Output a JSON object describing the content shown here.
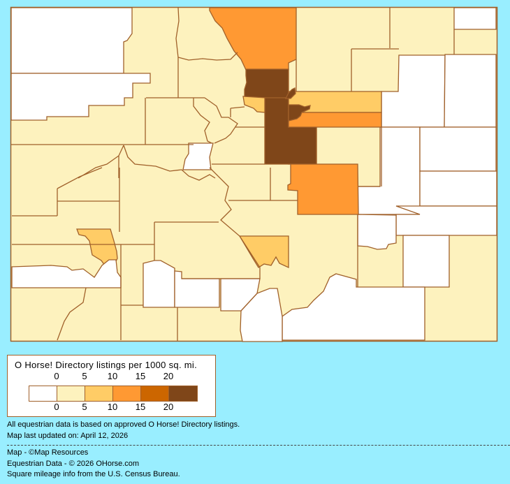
{
  "legend": {
    "title": "O Horse! Directory listings per 1000 sq. mi.",
    "ticks_top": [
      "0",
      "5",
      "10",
      "15",
      "20"
    ],
    "ticks_bottom": [
      "0",
      "5",
      "10",
      "15",
      "20"
    ],
    "class_colors": [
      "#FFFFFF",
      "#FDF2BE",
      "#FFCC66",
      "#FF9933",
      "#CC6600",
      "#7F4619"
    ]
  },
  "map": {
    "background_color": "#99EEFF",
    "border_color": "#A0602A",
    "default_class": 1,
    "region_classes": [
      0,
      0,
      0,
      0,
      0,
      0,
      0,
      0,
      0,
      0,
      0,
      0,
      0,
      0,
      0,
      3,
      5,
      2,
      5,
      2,
      3,
      5,
      5,
      3,
      2,
      2
    ]
  },
  "notes": {
    "basis": "All equestrian data is based on approved O Horse! Directory listings.",
    "updated": "Map last updated on: April 12, 2026",
    "map_credit": "Map - ©Map Resources",
    "data_credit": "Equestrian Data - © 2026 OHorse.com",
    "census_credit": "Square mileage info from the U.S. Census Bureau."
  }
}
